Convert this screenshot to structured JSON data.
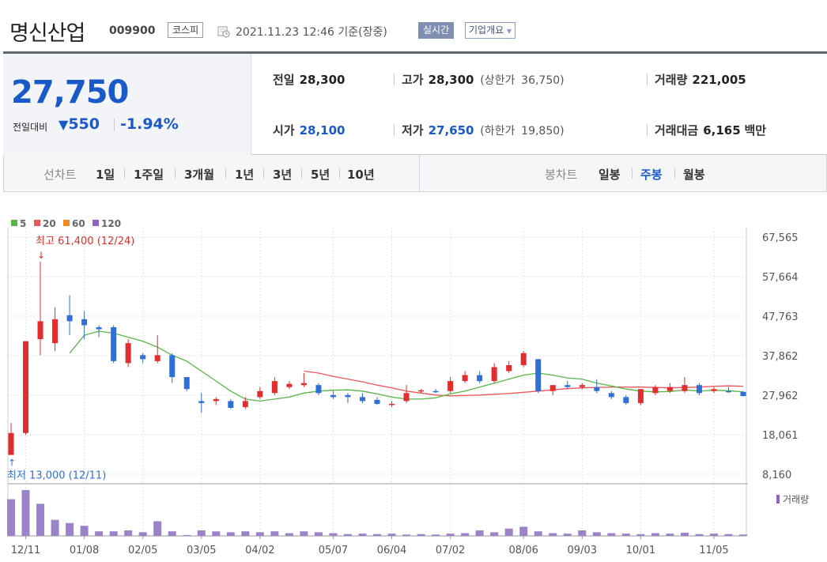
{
  "header": {
    "company_name": "명신산업",
    "stock_code": "009900",
    "market": "코스피",
    "datetime": "2021.11.23 12:46 기준(장중)",
    "realtime_label": "실시간",
    "overview_label": "기업개요"
  },
  "price": {
    "current": "27,750",
    "change_label": "전일대비",
    "change_amount": "550",
    "change_pct": "-1.94%"
  },
  "stats": {
    "prev_close_label": "전일",
    "prev_close": "28,300",
    "high_label": "고가",
    "high": "28,300",
    "upper_limit_label": "(상한가",
    "upper_limit": "36,750)",
    "volume_label": "거래량",
    "volume": "221,005",
    "open_label": "시가",
    "open": "28,100",
    "low_label": "저가",
    "low": "27,650",
    "lower_limit_label": "(하한가",
    "lower_limit": "19,850)",
    "amount_label": "거래대금",
    "amount": "6,165",
    "amount_unit": "백만"
  },
  "periods": {
    "line_chart_label": "선차트",
    "line_items": [
      "1일",
      "1주일",
      "3개월",
      "1년",
      "3년",
      "5년",
      "10년"
    ],
    "candle_chart_label": "봉차트",
    "candle_items": [
      "일봉",
      "주봉",
      "월봉"
    ],
    "active_candle": "주봉"
  },
  "colors": {
    "up": "#e12d2d",
    "down": "#2f6fd6",
    "ma5": "#5ab54a",
    "ma20": "#e8575a",
    "ma60": "#f08a24",
    "ma120": "#8b63c9",
    "volume": "#9b82c9",
    "accent": "#1a5ac8"
  },
  "chart_data": {
    "type": "candlestick",
    "legend": [
      {
        "name": "5",
        "color": "#5ab54a"
      },
      {
        "name": "20",
        "color": "#e8575a"
      },
      {
        "name": "60",
        "color": "#f08a24"
      },
      {
        "name": "120",
        "color": "#8b63c9"
      }
    ],
    "y_ticks": [
      "67,565",
      "57,664",
      "47,763",
      "37,862",
      "27,962",
      "18,061",
      "8,160"
    ],
    "ylim": [
      8160,
      67565
    ],
    "x_ticks": [
      "12/11",
      "01/08",
      "02/05",
      "03/05",
      "04/02",
      "05/07",
      "06/04",
      "07/02",
      "08/06",
      "09/03",
      "10/01",
      "11/05"
    ],
    "max_annotation": "최고 61,400 (12/24)",
    "min_annotation": "최저 13,000 (12/11)",
    "volume_label": "거래량",
    "candles": [
      {
        "o": 13000,
        "c": 18500,
        "h": 21000,
        "l": 13000
      },
      {
        "o": 18500,
        "c": 41500,
        "h": 41500,
        "l": 18000
      },
      {
        "o": 42000,
        "c": 46500,
        "h": 61400,
        "l": 38000
      },
      {
        "o": 41000,
        "c": 47000,
        "h": 50000,
        "l": 39000
      },
      {
        "o": 48000,
        "c": 46500,
        "h": 53000,
        "l": 43000
      },
      {
        "o": 47000,
        "c": 45500,
        "h": 49000,
        "l": 42000
      },
      {
        "o": 45000,
        "c": 44500,
        "h": 45500,
        "l": 42500
      },
      {
        "o": 45000,
        "c": 36500,
        "h": 45500,
        "l": 36000
      },
      {
        "o": 36000,
        "c": 41000,
        "h": 42000,
        "l": 35000
      },
      {
        "o": 38000,
        "c": 37000,
        "h": 38500,
        "l": 36000
      },
      {
        "o": 36500,
        "c": 38000,
        "h": 43000,
        "l": 36000
      },
      {
        "o": 38000,
        "c": 32500,
        "h": 38500,
        "l": 31000
      },
      {
        "o": 32500,
        "c": 29500,
        "h": 32500,
        "l": 29000
      },
      {
        "o": 26500,
        "c": 26000,
        "h": 28500,
        "l": 23500
      },
      {
        "o": 26500,
        "c": 27000,
        "h": 27500,
        "l": 25500
      },
      {
        "o": 26500,
        "c": 24800,
        "h": 27000,
        "l": 24500
      },
      {
        "o": 25000,
        "c": 26500,
        "h": 27500,
        "l": 24500
      },
      {
        "o": 27500,
        "c": 29000,
        "h": 30000,
        "l": 27000
      },
      {
        "o": 28500,
        "c": 31500,
        "h": 32500,
        "l": 28000
      },
      {
        "o": 30000,
        "c": 30800,
        "h": 31500,
        "l": 29500
      },
      {
        "o": 30500,
        "c": 31000,
        "h": 33500,
        "l": 30000
      },
      {
        "o": 30500,
        "c": 28500,
        "h": 31000,
        "l": 28000
      },
      {
        "o": 28000,
        "c": 27500,
        "h": 29000,
        "l": 27000
      },
      {
        "o": 28000,
        "c": 27500,
        "h": 28500,
        "l": 26000
      },
      {
        "o": 27500,
        "c": 26500,
        "h": 28500,
        "l": 26000
      },
      {
        "o": 26800,
        "c": 25800,
        "h": 27500,
        "l": 25500
      },
      {
        "o": 25500,
        "c": 25800,
        "h": 26500,
        "l": 25000
      },
      {
        "o": 26500,
        "c": 28500,
        "h": 30500,
        "l": 26000
      },
      {
        "o": 29000,
        "c": 29200,
        "h": 29500,
        "l": 28500
      },
      {
        "o": 29000,
        "c": 28700,
        "h": 29500,
        "l": 28500
      },
      {
        "o": 29000,
        "c": 31500,
        "h": 32500,
        "l": 28500
      },
      {
        "o": 31500,
        "c": 33000,
        "h": 34000,
        "l": 31000
      },
      {
        "o": 33000,
        "c": 31500,
        "h": 34000,
        "l": 31000
      },
      {
        "o": 31500,
        "c": 35000,
        "h": 36000,
        "l": 31000
      },
      {
        "o": 34000,
        "c": 35500,
        "h": 36500,
        "l": 33500
      },
      {
        "o": 35500,
        "c": 38500,
        "h": 39000,
        "l": 35000
      },
      {
        "o": 37000,
        "c": 29000,
        "h": 37000,
        "l": 28500
      },
      {
        "o": 29000,
        "c": 30500,
        "h": 30500,
        "l": 28000
      },
      {
        "o": 30500,
        "c": 30000,
        "h": 31500,
        "l": 29500
      },
      {
        "o": 30000,
        "c": 30500,
        "h": 31000,
        "l": 29500
      },
      {
        "o": 30000,
        "c": 29000,
        "h": 32000,
        "l": 28500
      },
      {
        "o": 28500,
        "c": 27500,
        "h": 29000,
        "l": 27000
      },
      {
        "o": 27500,
        "c": 26000,
        "h": 28000,
        "l": 25500
      },
      {
        "o": 26000,
        "c": 29500,
        "h": 29500,
        "l": 25500
      },
      {
        "o": 28500,
        "c": 30000,
        "h": 30500,
        "l": 28000
      },
      {
        "o": 29000,
        "c": 30000,
        "h": 31000,
        "l": 28500
      },
      {
        "o": 29000,
        "c": 30500,
        "h": 32500,
        "l": 28500
      },
      {
        "o": 30500,
        "c": 28500,
        "h": 31000,
        "l": 28000
      },
      {
        "o": 29000,
        "c": 29500,
        "h": 30000,
        "l": 28500
      },
      {
        "o": 29000,
        "c": 28800,
        "h": 30000,
        "l": 28500
      },
      {
        "o": 28800,
        "c": 27750,
        "h": 29000,
        "l": 27650
      }
    ],
    "ma5": [
      null,
      null,
      null,
      null,
      38500,
      43000,
      44000,
      43500,
      42500,
      41500,
      40000,
      38000,
      36500,
      34000,
      31500,
      29000,
      27000,
      26500,
      27000,
      27500,
      28500,
      29000,
      29200,
      29300,
      29000,
      28300,
      27500,
      27000,
      27000,
      27300,
      28300,
      29000,
      30000,
      31000,
      32000,
      33000,
      33500,
      33000,
      32300,
      32000,
      31000,
      30300,
      29500,
      29000,
      28800,
      28900,
      29300,
      29000,
      29200,
      29100,
      28800
    ],
    "ma20": [
      null,
      null,
      null,
      null,
      null,
      null,
      null,
      null,
      null,
      null,
      null,
      null,
      null,
      null,
      null,
      null,
      null,
      null,
      null,
      null,
      34000,
      33500,
      32700,
      32000,
      31300,
      30500,
      29800,
      29000,
      28500,
      28000,
      27800,
      27900,
      28000,
      28200,
      28400,
      28700,
      29000,
      29300,
      29600,
      29800,
      29900,
      30000,
      30000,
      30000,
      29900,
      29800,
      29900,
      30000,
      30200,
      30300,
      30200
    ],
    "volume": [
      8,
      10,
      7,
      3.5,
      2.8,
      2.2,
      1,
      1,
      1.2,
      0.8,
      3.2,
      1,
      0.2,
      1.2,
      1,
      0.8,
      1,
      0.8,
      1,
      0.6,
      1,
      0.8,
      0.6,
      0.4,
      0.5,
      0.4,
      0.5,
      0.3,
      0.4,
      0.3,
      0.5,
      0.6,
      1.2,
      0.8,
      1.6,
      2,
      1,
      0.6,
      0.5,
      1.2,
      0.8,
      0.6,
      0.5,
      0.4,
      0.6,
      0.5,
      0.7,
      0.4,
      0.5,
      0.4,
      0.3
    ],
    "x_tick_index": [
      1,
      5,
      9,
      13,
      17,
      22,
      26,
      30,
      35,
      39,
      43,
      48
    ]
  }
}
